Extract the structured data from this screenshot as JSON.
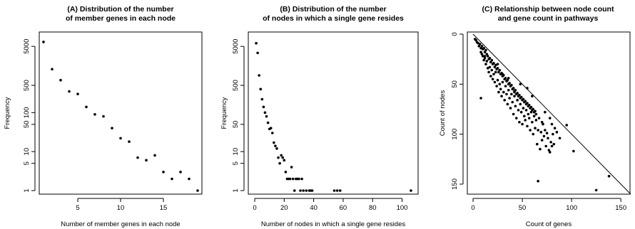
{
  "chart_data": [
    {
      "type": "scatter",
      "title_lines": [
        "(A) Distribution of the number",
        "of member genes in each node"
      ],
      "xlabel": "Number of member genes in each node",
      "ylabel": "Frequency",
      "y_scale": "log",
      "xlim": [
        1,
        19
      ],
      "ylim": [
        1,
        8000
      ],
      "x_ticks": [
        5,
        10,
        15
      ],
      "y_ticks": [
        1,
        5,
        10,
        50,
        100,
        500,
        5000
      ],
      "series": [
        {
          "x": [
            1,
            2,
            3,
            4,
            5,
            6,
            7,
            8,
            9,
            10,
            11,
            12,
            13,
            14,
            15,
            16,
            17,
            18,
            19
          ],
          "y": [
            6500,
            1300,
            680,
            350,
            300,
            140,
            90,
            80,
            40,
            22,
            18,
            7,
            6,
            8,
            3,
            2,
            3,
            2,
            1
          ]
        }
      ]
    },
    {
      "type": "scatter",
      "title_lines": [
        "(B) Distribution of the number",
        "of nodes in which a single gene resides"
      ],
      "xlabel": "Number of nodes in which a single gene resides",
      "ylabel": "Frequency",
      "y_scale": "log",
      "xlim": [
        0,
        107
      ],
      "ylim": [
        1,
        8000
      ],
      "x_ticks": [
        0,
        20,
        40,
        60,
        80,
        100
      ],
      "y_ticks": [
        1,
        5,
        10,
        50,
        500,
        5000
      ],
      "series": [
        {
          "x": [
            1,
            2,
            3,
            4,
            5,
            6,
            7,
            8,
            9,
            10,
            11,
            12,
            13,
            14,
            15,
            16,
            17,
            18,
            19,
            20,
            21,
            22,
            23,
            24,
            25,
            26,
            27,
            28,
            29,
            30,
            31,
            32,
            33,
            35,
            37,
            38,
            39,
            54,
            56,
            58,
            106
          ],
          "y": [
            6000,
            3400,
            900,
            400,
            220,
            140,
            100,
            80,
            55,
            38,
            40,
            30,
            17,
            14,
            12,
            7,
            5,
            8,
            7,
            6,
            3,
            2,
            2,
            2,
            4,
            2,
            1,
            2,
            2,
            2,
            1,
            2,
            1,
            1,
            1,
            1,
            1,
            1,
            1,
            1,
            1
          ]
        }
      ]
    },
    {
      "type": "scatter",
      "title_lines": [
        "(C) Relationship between node count",
        "and gene count in pathways"
      ],
      "xlabel": "Count of genes",
      "ylabel": "Count of nodes",
      "xlim": [
        0,
        160
      ],
      "ylim": [
        0,
        160
      ],
      "x_ticks": [
        0,
        50,
        100,
        150
      ],
      "y_ticks": [
        0,
        50,
        100,
        150
      ],
      "reference_line": "y = x",
      "series": [
        {
          "x": [
            2,
            3,
            4,
            5,
            6,
            7,
            8,
            8,
            9,
            9,
            10,
            10,
            11,
            11,
            12,
            12,
            13,
            13,
            14,
            14,
            15,
            15,
            16,
            16,
            17,
            17,
            18,
            18,
            19,
            19,
            20,
            20,
            21,
            21,
            22,
            22,
            23,
            23,
            24,
            24,
            25,
            25,
            26,
            26,
            27,
            27,
            28,
            28,
            29,
            29,
            30,
            30,
            31,
            31,
            32,
            32,
            33,
            33,
            34,
            34,
            35,
            35,
            36,
            36,
            37,
            37,
            38,
            38,
            39,
            39,
            40,
            40,
            41,
            41,
            42,
            42,
            43,
            43,
            44,
            44,
            45,
            45,
            46,
            46,
            47,
            47,
            48,
            48,
            49,
            49,
            50,
            50,
            51,
            51,
            52,
            52,
            53,
            53,
            54,
            54,
            55,
            55,
            56,
            56,
            57,
            57,
            58,
            58,
            59,
            59,
            60,
            60,
            61,
            61,
            62,
            62,
            63,
            63,
            64,
            64,
            65,
            66,
            67,
            68,
            69,
            70,
            71,
            72,
            73,
            74,
            75,
            76,
            77,
            78,
            79,
            80,
            81,
            82,
            85,
            88,
            95,
            102,
            125,
            138,
            66,
            70,
            73,
            78,
            80,
            83,
            60,
            55,
            48,
            42,
            36,
            30,
            25,
            18,
            12,
            8
          ],
          "y": [
            5,
            6,
            8,
            9,
            12,
            10,
            14,
            18,
            12,
            20,
            15,
            22,
            14,
            26,
            18,
            24,
            16,
            30,
            20,
            27,
            22,
            34,
            25,
            38,
            24,
            33,
            28,
            42,
            26,
            36,
            30,
            45,
            29,
            40,
            33,
            48,
            31,
            38,
            35,
            52,
            34,
            46,
            38,
            58,
            36,
            50,
            40,
            55,
            39,
            62,
            42,
            48,
            41,
            58,
            45,
            66,
            44,
            52,
            47,
            60,
            46,
            70,
            50,
            56,
            49,
            64,
            52,
            74,
            51,
            60,
            55,
            68,
            54,
            80,
            57,
            62,
            56,
            72,
            60,
            84,
            59,
            66,
            62,
            76,
            61,
            88,
            64,
            70,
            63,
            78,
            66,
            90,
            65,
            74,
            68,
            82,
            67,
            86,
            70,
            76,
            69,
            92,
            72,
            80,
            71,
            84,
            74,
            96,
            73,
            78,
            76,
            88,
            75,
            100,
            78,
            82,
            77,
            94,
            80,
            86,
            110,
            147,
            84,
            115,
            98,
            106,
            90,
            102,
            96,
            112,
            99,
            104,
            116,
            118,
            108,
            112,
            100,
            110,
            98,
            104,
            91,
            117,
            156,
            142,
            96,
            88,
            78,
            84,
            90,
            94,
            62,
            54,
            50,
            58,
            44,
            40,
            30,
            28,
            22,
            64
          ]
        }
      ]
    }
  ]
}
